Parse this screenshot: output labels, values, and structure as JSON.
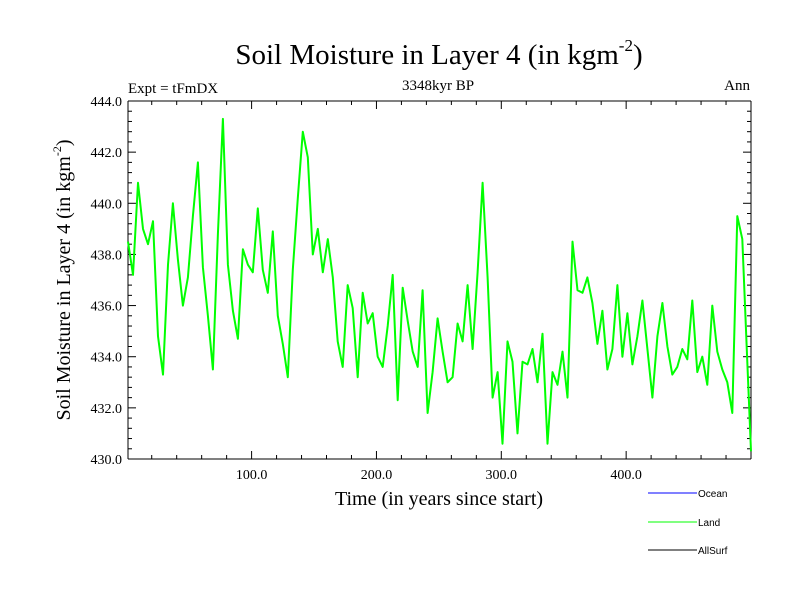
{
  "chart_data": {
    "type": "line",
    "title": "Soil Moisture in Layer 4 (in kgm",
    "title_sup": "-2",
    "title_close": ")",
    "subtitle_left": "Expt = tFmDX",
    "subtitle_center": "3348kyr BP",
    "subtitle_right": "Ann",
    "xlabel": "Time (in years since start)",
    "ylabel": "Soil Moisture in Layer 4 (in kgm",
    "ylabel_sup": "-2",
    "ylabel_close": ")",
    "xlim": [
      1,
      500
    ],
    "ylim": [
      430.0,
      444.0
    ],
    "x_ticks": [
      100,
      200,
      300,
      400
    ],
    "x_tick_labels": [
      "100.0",
      "200.0",
      "300.0",
      "400.0"
    ],
    "y_ticks": [
      430,
      432,
      434,
      436,
      438,
      440,
      442,
      444
    ],
    "y_tick_labels": [
      "430.0",
      "432.0",
      "434.0",
      "436.0",
      "438.0",
      "440.0",
      "442.0",
      "444.0"
    ],
    "grid": false,
    "legend_position": "bottom-right",
    "legend": [
      {
        "name": "Ocean",
        "color": "#0000ff"
      },
      {
        "name": "Land",
        "color": "#00ff00"
      },
      {
        "name": "AllSurf",
        "color": "#000000"
      }
    ],
    "series": [
      {
        "name": "Land",
        "color": "#00ff00",
        "x": [
          1,
          5,
          9,
          13,
          17,
          21,
          25,
          29,
          33,
          37,
          41,
          45,
          49,
          53,
          57,
          61,
          65,
          69,
          73,
          77,
          81,
          85,
          89,
          93,
          97,
          101,
          105,
          109,
          113,
          117,
          121,
          125,
          129,
          133,
          137,
          141,
          145,
          149,
          153,
          157,
          161,
          165,
          169,
          173,
          177,
          181,
          185,
          189,
          193,
          197,
          201,
          205,
          209,
          213,
          217,
          221,
          225,
          229,
          233,
          237,
          241,
          245,
          249,
          253,
          257,
          261,
          265,
          269,
          273,
          277,
          281,
          285,
          289,
          293,
          297,
          301,
          305,
          309,
          313,
          317,
          321,
          325,
          329,
          333,
          337,
          341,
          345,
          349,
          353,
          357,
          361,
          365,
          369,
          373,
          377,
          381,
          385,
          389,
          393,
          397,
          401,
          405,
          409,
          413,
          417,
          421,
          425,
          429,
          433,
          437,
          441,
          445,
          449,
          453,
          457,
          461,
          465,
          469,
          473,
          477,
          481,
          485,
          489,
          493,
          497,
          500
        ],
        "values": [
          438.5,
          437.2,
          440.8,
          439.0,
          438.4,
          439.3,
          434.8,
          433.3,
          437.6,
          440.0,
          437.8,
          436.0,
          437.1,
          439.5,
          441.6,
          437.5,
          435.6,
          433.5,
          438.8,
          443.3,
          437.6,
          435.8,
          434.7,
          438.2,
          437.6,
          437.3,
          439.8,
          437.4,
          436.5,
          438.9,
          435.6,
          434.5,
          433.2,
          437.4,
          440.2,
          442.8,
          441.8,
          438.0,
          439.0,
          437.3,
          438.6,
          437.1,
          434.6,
          433.6,
          436.8,
          435.9,
          433.2,
          436.5,
          435.3,
          435.7,
          434.0,
          433.6,
          435.2,
          437.2,
          432.3,
          436.7,
          435.4,
          434.2,
          433.6,
          436.6,
          431.8,
          433.4,
          435.5,
          434.2,
          433.0,
          433.2,
          435.3,
          434.6,
          436.8,
          434.3,
          437.3,
          440.8,
          437.1,
          432.4,
          433.4,
          430.6,
          434.6,
          433.8,
          431.0,
          433.8,
          433.7,
          434.3,
          433.0,
          434.9,
          430.6,
          433.4,
          432.9,
          434.2,
          432.4,
          438.5,
          436.6,
          436.5,
          437.1,
          436.1,
          434.5,
          435.8,
          433.5,
          434.3,
          436.8,
          434.0,
          435.7,
          433.7,
          434.8,
          436.2,
          434.3,
          432.4,
          434.8,
          436.1,
          434.4,
          433.3,
          433.6,
          434.3,
          433.9,
          436.2,
          433.4,
          434.0,
          432.9,
          436.0,
          434.2,
          433.5,
          433.0,
          431.8,
          439.5,
          438.6,
          433.8,
          430.3
        ]
      }
    ]
  }
}
